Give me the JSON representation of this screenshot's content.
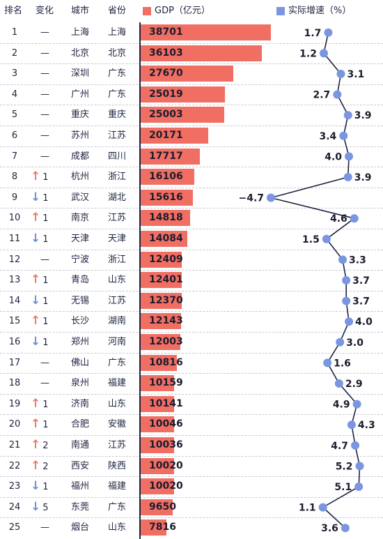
{
  "headers": {
    "rank": "排名",
    "change": "变化",
    "city": "城市",
    "province": "省份",
    "gdp": "GDP（亿元）",
    "growth": "实际增速（%）"
  },
  "colors": {
    "gdp_bar": "#f16e63",
    "growth_point": "#7b96e0",
    "growth_line": "#1d2340",
    "up": "#ea7a6c",
    "down": "#6e8fd8"
  },
  "chart_data": {
    "type": "bar",
    "categories": [
      "上海",
      "北京",
      "深圳",
      "广州",
      "重庆",
      "苏州",
      "成都",
      "杭州",
      "武汉",
      "南京",
      "天津",
      "宁波",
      "青岛",
      "无锡",
      "长沙",
      "郑州",
      "佛山",
      "泉州",
      "济南",
      "合肥",
      "南通",
      "西安",
      "福州",
      "东莞",
      "烟台"
    ],
    "series": [
      {
        "name": "GDP（亿元）",
        "values": [
          38701,
          36103,
          27670,
          25019,
          25003,
          20171,
          17717,
          16106,
          15616,
          14818,
          14084,
          12409,
          12401,
          12370,
          12143,
          12003,
          10816,
          10159,
          10141,
          10046,
          10036,
          10020,
          10020,
          9650,
          7816
        ]
      },
      {
        "name": "实际增速（%）",
        "type": "line",
        "values": [
          1.7,
          1.2,
          3.1,
          2.7,
          3.9,
          3.4,
          4.0,
          3.9,
          -4.7,
          4.6,
          1.5,
          3.3,
          3.7,
          3.7,
          4.0,
          3.0,
          1.6,
          2.9,
          4.9,
          4.3,
          4.7,
          5.2,
          5.1,
          1.1,
          3.6
        ]
      }
    ],
    "growth_labels": [
      "1.7",
      "1.2",
      "3.1",
      "2.7",
      "3.9",
      "3.4",
      "4.0",
      "3.9",
      "−4.7",
      "4.6",
      "1.5",
      "3.3",
      "3.7",
      "3.7",
      "4.0",
      "3.0",
      "1.6",
      "2.9",
      "4.9",
      "4.3",
      "4.7",
      "5.2",
      "5.1",
      "1.1",
      "3.6"
    ]
  },
  "rows": [
    {
      "rank": "1",
      "change": "—",
      "city": "上海",
      "province": "上海",
      "gdp": "38701"
    },
    {
      "rank": "2",
      "change": "—",
      "city": "北京",
      "province": "北京",
      "gdp": "36103"
    },
    {
      "rank": "3",
      "change": "—",
      "city": "深圳",
      "province": "广东",
      "gdp": "27670"
    },
    {
      "rank": "4",
      "change": "—",
      "city": "广州",
      "province": "广东",
      "gdp": "25019"
    },
    {
      "rank": "5",
      "change": "—",
      "city": "重庆",
      "province": "重庆",
      "gdp": "25003"
    },
    {
      "rank": "6",
      "change": "—",
      "city": "苏州",
      "province": "江苏",
      "gdp": "20171"
    },
    {
      "rank": "7",
      "change": "—",
      "city": "成都",
      "province": "四川",
      "gdp": "17717"
    },
    {
      "rank": "8",
      "change": "1",
      "direction": "up",
      "city": "杭州",
      "province": "浙江",
      "gdp": "16106"
    },
    {
      "rank": "9",
      "change": "1",
      "direction": "down",
      "city": "武汉",
      "province": "湖北",
      "gdp": "15616"
    },
    {
      "rank": "10",
      "change": "1",
      "direction": "up",
      "city": "南京",
      "province": "江苏",
      "gdp": "14818"
    },
    {
      "rank": "11",
      "change": "1",
      "direction": "down",
      "city": "天津",
      "province": "天津",
      "gdp": "14084"
    },
    {
      "rank": "12",
      "change": "—",
      "city": "宁波",
      "province": "浙江",
      "gdp": "12409"
    },
    {
      "rank": "13",
      "change": "1",
      "direction": "up",
      "city": "青岛",
      "province": "山东",
      "gdp": "12401"
    },
    {
      "rank": "14",
      "change": "1",
      "direction": "down",
      "city": "无锡",
      "province": "江苏",
      "gdp": "12370"
    },
    {
      "rank": "15",
      "change": "1",
      "direction": "up",
      "city": "长沙",
      "province": "湖南",
      "gdp": "12143"
    },
    {
      "rank": "16",
      "change": "1",
      "direction": "down",
      "city": "郑州",
      "province": "河南",
      "gdp": "12003"
    },
    {
      "rank": "17",
      "change": "—",
      "city": "佛山",
      "province": "广东",
      "gdp": "10816"
    },
    {
      "rank": "18",
      "change": "—",
      "city": "泉州",
      "province": "福建",
      "gdp": "10159"
    },
    {
      "rank": "19",
      "change": "1",
      "direction": "up",
      "city": "济南",
      "province": "山东",
      "gdp": "10141"
    },
    {
      "rank": "20",
      "change": "1",
      "direction": "up",
      "city": "合肥",
      "province": "安徽",
      "gdp": "10046"
    },
    {
      "rank": "21",
      "change": "2",
      "direction": "up",
      "city": "南通",
      "province": "江苏",
      "gdp": "10036"
    },
    {
      "rank": "22",
      "change": "2",
      "direction": "up",
      "city": "西安",
      "province": "陕西",
      "gdp": "10020"
    },
    {
      "rank": "23",
      "change": "1",
      "direction": "down",
      "city": "福州",
      "province": "福建",
      "gdp": "10020"
    },
    {
      "rank": "24",
      "change": "5",
      "direction": "down",
      "city": "东莞",
      "province": "广东",
      "gdp": "9650"
    },
    {
      "rank": "25",
      "change": "—",
      "city": "烟台",
      "province": "山东",
      "gdp": "7816"
    }
  ]
}
